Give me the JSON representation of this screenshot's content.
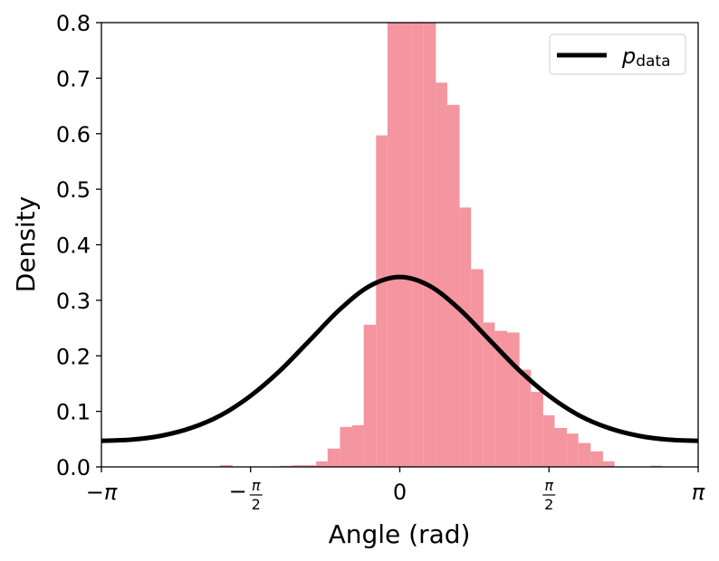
{
  "chart_data": {
    "type": "bar",
    "xlabel": "Angle (rad)",
    "ylabel": "Density",
    "xlim": [
      -3.14159,
      3.14159
    ],
    "ylim": [
      0,
      0.8
    ],
    "grid": false,
    "legend_placement": "top-right",
    "x_ticks": [
      {
        "value": -3.14159,
        "label": "−π"
      },
      {
        "value": -1.5708,
        "label": "−π/2"
      },
      {
        "value": 0,
        "label": "0"
      },
      {
        "value": 1.5708,
        "label": "π/2"
      },
      {
        "value": 3.14159,
        "label": "π"
      }
    ],
    "y_ticks": [
      0.0,
      0.1,
      0.2,
      0.3,
      0.4,
      0.5,
      0.6,
      0.7,
      0.8
    ],
    "y_tick_labels": [
      "0.0",
      "0.1",
      "0.2",
      "0.3",
      "0.4",
      "0.5",
      "0.6",
      "0.7",
      "0.8"
    ],
    "histogram": {
      "color": "#f4959f",
      "bins": [
        {
          "x0": -1.89,
          "x1": -1.76,
          "density": 0.003
        },
        {
          "x0": -1.26,
          "x1": -1.13,
          "density": 0.002
        },
        {
          "x0": -1.13,
          "x1": -1.01,
          "density": 0.003
        },
        {
          "x0": -1.01,
          "x1": -0.88,
          "density": 0.003
        },
        {
          "x0": -0.88,
          "x1": -0.76,
          "density": 0.01
        },
        {
          "x0": -0.76,
          "x1": -0.63,
          "density": 0.033
        },
        {
          "x0": -0.63,
          "x1": -0.5,
          "density": 0.072
        },
        {
          "x0": -0.5,
          "x1": -0.38,
          "density": 0.075
        },
        {
          "x0": -0.38,
          "x1": -0.25,
          "density": 0.256
        },
        {
          "x0": -0.25,
          "x1": -0.13,
          "density": 0.597
        },
        {
          "x0": -0.13,
          "x1": 0.0,
          "density": 0.81
        },
        {
          "x0": 0.0,
          "x1": 0.13,
          "density": 0.81
        },
        {
          "x0": 0.13,
          "x1": 0.25,
          "density": 0.81
        },
        {
          "x0": 0.25,
          "x1": 0.38,
          "density": 0.81
        },
        {
          "x0": 0.38,
          "x1": 0.5,
          "density": 0.692
        },
        {
          "x0": 0.5,
          "x1": 0.63,
          "density": 0.652
        },
        {
          "x0": 0.63,
          "x1": 0.75,
          "density": 0.467
        },
        {
          "x0": 0.75,
          "x1": 0.88,
          "density": 0.356
        },
        {
          "x0": 0.88,
          "x1": 1.0,
          "density": 0.26
        },
        {
          "x0": 1.0,
          "x1": 1.13,
          "density": 0.245
        },
        {
          "x0": 1.13,
          "x1": 1.26,
          "density": 0.242
        },
        {
          "x0": 1.26,
          "x1": 1.38,
          "density": 0.175
        },
        {
          "x0": 1.38,
          "x1": 1.51,
          "density": 0.135
        },
        {
          "x0": 1.51,
          "x1": 1.63,
          "density": 0.093
        },
        {
          "x0": 1.63,
          "x1": 1.76,
          "density": 0.07
        },
        {
          "x0": 1.76,
          "x1": 1.88,
          "density": 0.06
        },
        {
          "x0": 1.88,
          "x1": 2.01,
          "density": 0.043
        },
        {
          "x0": 2.01,
          "x1": 2.14,
          "density": 0.028
        },
        {
          "x0": 2.14,
          "x1": 2.26,
          "density": 0.01
        },
        {
          "x0": 2.64,
          "x1": 2.76,
          "density": 0.002
        }
      ]
    },
    "curve": {
      "color": "#000000",
      "x": [
        -3.14159,
        -2.82743,
        -2.51327,
        -2.19911,
        -1.88496,
        -1.5708,
        -1.25664,
        -0.94248,
        -0.62832,
        -0.31416,
        0.0,
        0.31416,
        0.62832,
        0.94248,
        1.25664,
        1.5708,
        1.88496,
        2.19911,
        2.51327,
        2.82743,
        3.14159
      ],
      "y": [
        0.047,
        0.049,
        0.056,
        0.07,
        0.093,
        0.128,
        0.174,
        0.229,
        0.284,
        0.326,
        0.342,
        0.326,
        0.284,
        0.229,
        0.174,
        0.128,
        0.093,
        0.07,
        0.056,
        0.049,
        0.047
      ]
    },
    "legend": [
      {
        "label_main": "p",
        "label_sub": "data",
        "color": "#000000"
      }
    ]
  }
}
